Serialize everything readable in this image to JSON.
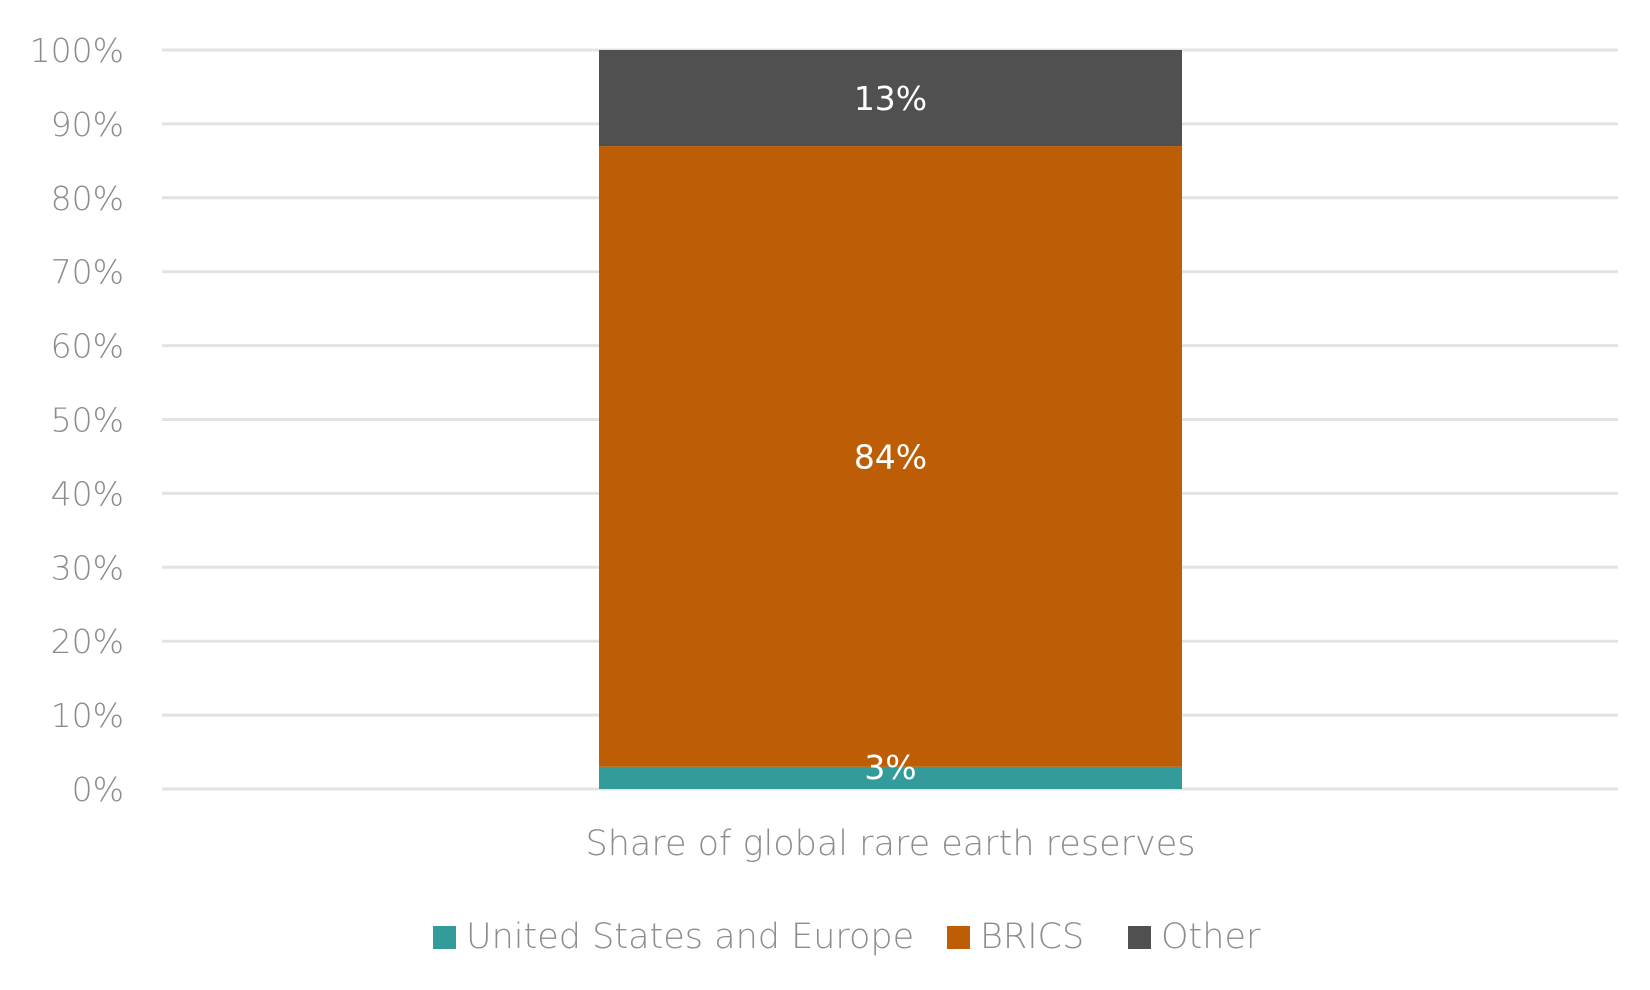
{
  "chart_data": {
    "type": "bar",
    "stacked": true,
    "title": "",
    "xlabel": "",
    "ylabel": "",
    "ylim": [
      0,
      100
    ],
    "y_ticks": [
      "0%",
      "10%",
      "20%",
      "30%",
      "40%",
      "50%",
      "60%",
      "70%",
      "80%",
      "90%",
      "100%"
    ],
    "grid": true,
    "legend_position": "bottom",
    "categories": [
      "Share of global rare earth reserves"
    ],
    "series": [
      {
        "name": "United States and Europe",
        "values": [
          3
        ],
        "label": "3%",
        "color": "#339b99"
      },
      {
        "name": "BRICS",
        "values": [
          84
        ],
        "label": "84%",
        "color": "#bd5e07"
      },
      {
        "name": "Other",
        "values": [
          13
        ],
        "label": "13%",
        "color": "#505050"
      }
    ]
  }
}
